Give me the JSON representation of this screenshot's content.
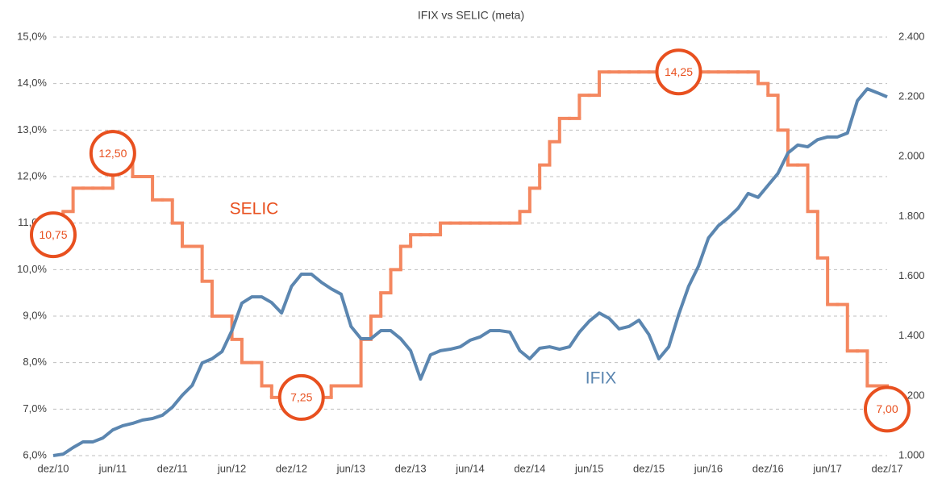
{
  "chart_data": {
    "type": "line",
    "title": "IFIX vs SELIC (meta)",
    "categories": [
      "dez/10",
      null,
      null,
      null,
      null,
      null,
      "jun/11",
      null,
      null,
      null,
      null,
      null,
      "dez/11",
      null,
      null,
      null,
      null,
      null,
      "jun/12",
      null,
      null,
      null,
      null,
      null,
      "dez/12",
      null,
      null,
      null,
      null,
      null,
      "jun/13",
      null,
      null,
      null,
      null,
      null,
      "dez/13",
      null,
      null,
      null,
      null,
      null,
      "jun/14",
      null,
      null,
      null,
      null,
      null,
      "dez/14",
      null,
      null,
      null,
      null,
      null,
      "jun/15",
      null,
      null,
      null,
      null,
      null,
      "dez/15",
      null,
      null,
      null,
      null,
      null,
      "jun/16",
      null,
      null,
      null,
      null,
      null,
      "dez/16",
      null,
      null,
      null,
      null,
      null,
      "jun/17",
      null,
      null,
      null,
      null,
      null,
      "dez/17"
    ],
    "series": [
      {
        "name": "SELIC",
        "color": "#f4875f",
        "axis": "y",
        "style": "step",
        "values": [
          10.75,
          11.25,
          11.75,
          11.75,
          11.75,
          11.75,
          12.5,
          12.5,
          12,
          12,
          11.5,
          11.5,
          11,
          10.5,
          10.5,
          9.75,
          9,
          9,
          8.5,
          8,
          8,
          7.5,
          7.25,
          7.25,
          7.25,
          7.25,
          7.25,
          7.25,
          7.5,
          7.5,
          7.5,
          8.5,
          9,
          9.5,
          10,
          10.5,
          10.75,
          10.75,
          10.75,
          11,
          11,
          11,
          11,
          11,
          11,
          11,
          11,
          11.25,
          11.75,
          12.25,
          12.75,
          13.25,
          13.25,
          13.75,
          13.75,
          14.25,
          14.25,
          14.25,
          14.25,
          14.25,
          14.25,
          14.25,
          14.25,
          14.25,
          14.25,
          14.25,
          14.25,
          14.25,
          14.25,
          14.25,
          14.25,
          14,
          13.75,
          13,
          12.25,
          12.25,
          11.25,
          10.25,
          9.25,
          9.25,
          8.25,
          8.25,
          7.5,
          7.5,
          7
        ],
        "value_labels": [
          "10,75",
          null,
          null,
          null,
          null,
          null,
          "12,50",
          null,
          null,
          null,
          null,
          null,
          null,
          null,
          null,
          null,
          null,
          null,
          null,
          null,
          null,
          null,
          null,
          null,
          null,
          "7,25",
          null,
          null,
          null,
          null,
          null,
          null,
          null,
          null,
          null,
          null,
          null,
          null,
          null,
          null,
          null,
          null,
          null,
          null,
          null,
          null,
          null,
          null,
          null,
          null,
          null,
          null,
          null,
          null,
          null,
          null,
          null,
          null,
          null,
          null,
          null,
          null,
          null,
          "14,25",
          null,
          null,
          null,
          null,
          null,
          null,
          null,
          null,
          null,
          null,
          null,
          null,
          null,
          null,
          null,
          null,
          null,
          null,
          null,
          null,
          "7,00"
        ]
      },
      {
        "name": "IFIX",
        "color": "#5b86b0",
        "axis": "y2",
        "values": [
          1000,
          1005,
          1027,
          1046,
          1046,
          1059,
          1086,
          1100,
          1108,
          1119,
          1124,
          1135,
          1162,
          1202,
          1235,
          1310,
          1324,
          1348,
          1418,
          1510,
          1531,
          1531,
          1512,
          1477,
          1566,
          1607,
          1607,
          1580,
          1558,
          1540,
          1432,
          1391,
          1391,
          1418,
          1418,
          1391,
          1351,
          1256,
          1337,
          1351,
          1356,
          1364,
          1386,
          1397,
          1418,
          1418,
          1413,
          1351,
          1324,
          1359,
          1364,
          1356,
          1364,
          1413,
          1450,
          1477,
          1459,
          1424,
          1432,
          1453,
          1405,
          1324,
          1364,
          1472,
          1566,
          1634,
          1728,
          1769,
          1796,
          1828,
          1877,
          1864,
          1904,
          1944,
          2012,
          2039,
          2033,
          2057,
          2066,
          2066,
          2079,
          2187,
          2227,
          2214,
          2200
        ]
      }
    ],
    "ylim": [
      6,
      15
    ],
    "yticks": [
      {
        "value": 6,
        "label": "6,0%"
      },
      {
        "value": 7,
        "label": "7,0%"
      },
      {
        "value": 8,
        "label": "8,0%"
      },
      {
        "value": 9,
        "label": "9,0%"
      },
      {
        "value": 10,
        "label": "10,0%"
      },
      {
        "value": 11,
        "label": "11,0%"
      },
      {
        "value": 12,
        "label": "12,0%"
      },
      {
        "value": 13,
        "label": "13,0%"
      },
      {
        "value": 14,
        "label": "14,0%"
      },
      {
        "value": 15,
        "label": "15,0%"
      }
    ],
    "y2lim": [
      1000,
      2400
    ],
    "y2ticks": [
      {
        "value": 1000,
        "label": "1.000"
      },
      {
        "value": 1200,
        "label": "1.200"
      },
      {
        "value": 1400,
        "label": "1.400"
      },
      {
        "value": 1600,
        "label": "1.600"
      },
      {
        "value": 1800,
        "label": "1.800"
      },
      {
        "value": 2000,
        "label": "2.000"
      },
      {
        "value": 2200,
        "label": "2.200"
      },
      {
        "value": 2400,
        "label": "2.400"
      }
    ],
    "grid": true
  }
}
